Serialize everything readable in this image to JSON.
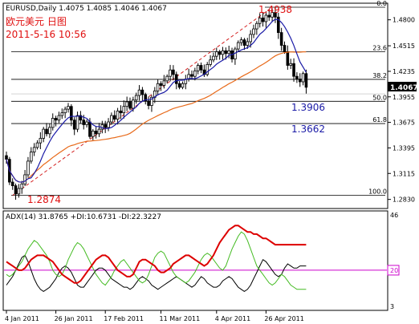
{
  "header": {
    "symbol_line": "EURUSD,Daily  1.4075 1.4085 1.4046 1.4067",
    "title_cn": "欧元美元 日图",
    "datetime": "2011-5-16  10:56"
  },
  "indicator": {
    "label": "ADX(14) 31.8765 +DI:10.6731 -DI:22.3227"
  },
  "colors": {
    "background": "#ffffff",
    "frame": "#000000",
    "candle": "#000000",
    "ma_fast": "#1a1aa6",
    "ma_slow": "#e86a1a",
    "trend": "#d42020",
    "red_text": "#e01010",
    "fib_text": "#1a1aa6",
    "grid": "#000000",
    "adx": "#dd0000",
    "plus_di": "#44bb22",
    "minus_di": "#000000",
    "level_line": "#cc00cc",
    "price_tag_bg": "#000000",
    "price_tag_fg": "#ffffff"
  },
  "chart_data": [
    {
      "type": "candlestick",
      "title": "EURUSD,Daily",
      "ylim": [
        1.2783,
        1.4938
      ],
      "yticks": [
        {
          "value": 1.48,
          "label": "1.4800"
        },
        {
          "value": 1.4515,
          "label": "1.4515"
        },
        {
          "value": 1.4235,
          "label": "1.4235"
        },
        {
          "value": 1.3955,
          "label": "1.3955"
        },
        {
          "value": 1.3675,
          "label": "1.3675"
        },
        {
          "value": 1.3395,
          "label": "1.3395"
        },
        {
          "value": 1.3115,
          "label": "1.3115"
        },
        {
          "value": 1.283,
          "label": "1.2830"
        }
      ],
      "xticks": [
        {
          "index": 0,
          "label": "4 Jan 2011"
        },
        {
          "index": 16,
          "label": "26 Jan 2011"
        },
        {
          "index": 32,
          "label": "17 Feb 2011"
        },
        {
          "index": 50,
          "label": "11 Mar 2011"
        },
        {
          "index": 68,
          "label": "4 Apr 2011"
        },
        {
          "index": 84,
          "label": "26 Apr 2011"
        }
      ],
      "current_price": {
        "value": 1.4067,
        "label": "1.4067"
      },
      "fib_levels": [
        {
          "ratio": "0.0",
          "value": 1.4938
        },
        {
          "ratio": "23.6",
          "value": 1.4449
        },
        {
          "ratio": "38.2",
          "value": 1.4147
        },
        {
          "ratio": "50.0",
          "value": 1.3906
        },
        {
          "ratio": "61.8",
          "value": 1.3662
        },
        {
          "ratio": "100.0",
          "value": 1.2874
        }
      ],
      "annotations": {
        "high": "1.4938",
        "low": "1.2874",
        "fib50": "1.3906",
        "fib618": "1.3662"
      },
      "trend_points": [
        {
          "index": 2,
          "value": 1.2874
        },
        {
          "index": 86,
          "value": 1.4938
        }
      ],
      "closes": [
        1.327,
        1.302,
        1.298,
        1.289,
        1.295,
        1.3,
        1.31,
        1.325,
        1.335,
        1.34,
        1.345,
        1.35,
        1.36,
        1.355,
        1.362,
        1.372,
        1.37,
        1.375,
        1.378,
        1.382,
        1.385,
        1.37,
        1.36,
        1.375,
        1.37,
        1.365,
        1.368,
        1.352,
        1.358,
        1.355,
        1.36,
        1.365,
        1.362,
        1.368,
        1.375,
        1.371,
        1.38,
        1.378,
        1.385,
        1.39,
        1.383,
        1.392,
        1.397,
        1.403,
        1.398,
        1.391,
        1.386,
        1.395,
        1.402,
        1.41,
        1.408,
        1.413,
        1.418,
        1.425,
        1.42,
        1.41,
        1.406,
        1.41,
        1.415,
        1.42,
        1.418,
        1.424,
        1.43,
        1.425,
        1.42,
        1.431,
        1.436,
        1.44,
        1.445,
        1.442,
        1.446,
        1.443,
        1.446,
        1.437,
        1.448,
        1.455,
        1.458,
        1.452,
        1.456,
        1.464,
        1.47,
        1.476,
        1.482,
        1.478,
        1.485,
        1.483,
        1.488,
        1.483,
        1.466,
        1.452,
        1.445,
        1.43,
        1.432,
        1.418,
        1.415,
        1.412,
        1.421,
        1.406
      ]
    },
    {
      "type": "line",
      "title": "ADX(14)",
      "ylim": [
        3,
        46
      ],
      "yticks": [
        {
          "value": 46,
          "label": "46"
        },
        {
          "value": 20,
          "label": "20"
        },
        {
          "value": 3,
          "label": "3"
        }
      ],
      "reference_level": 20,
      "series": [
        {
          "name": "ADX(14)",
          "color": "#dd0000",
          "values": [
            24,
            23,
            22,
            21,
            20,
            20,
            21,
            23,
            25,
            26,
            27,
            27,
            27,
            26,
            25,
            24,
            22,
            20,
            18,
            17,
            16,
            15,
            14,
            14,
            15,
            17,
            19,
            21,
            23,
            25,
            26,
            27,
            27,
            26,
            24,
            22,
            20,
            19,
            18,
            17,
            17,
            18,
            21,
            24,
            25,
            25,
            24,
            23,
            22,
            20,
            19,
            19,
            20,
            21,
            23,
            24,
            25,
            26,
            27,
            27,
            26,
            25,
            24,
            23,
            22,
            23,
            25,
            27,
            30,
            33,
            35,
            37,
            39,
            40,
            41,
            41,
            40,
            39,
            38,
            38,
            37,
            37,
            36,
            35,
            35,
            34,
            33,
            32,
            32,
            32,
            32,
            32,
            32,
            32,
            32,
            32,
            32,
            32
          ]
        },
        {
          "name": "+DI",
          "color": "#44bb22",
          "values": [
            18,
            17,
            18,
            20,
            22,
            24,
            27,
            30,
            32,
            34,
            33,
            31,
            29,
            27,
            24,
            20,
            18,
            17,
            18,
            21,
            25,
            28,
            31,
            33,
            32,
            30,
            27,
            24,
            21,
            18,
            16,
            14,
            13,
            15,
            17,
            20,
            22,
            24,
            25,
            23,
            21,
            19,
            17,
            15,
            14,
            15,
            18,
            22,
            26,
            28,
            29,
            28,
            25,
            22,
            19,
            17,
            16,
            15,
            14,
            15,
            17,
            19,
            22,
            25,
            27,
            28,
            27,
            25,
            23,
            21,
            20,
            22,
            26,
            30,
            33,
            36,
            38,
            37,
            34,
            30,
            26,
            22,
            20,
            18,
            16,
            14,
            13,
            14,
            16,
            18,
            17,
            15,
            13,
            12,
            11,
            11,
            11,
            11
          ]
        },
        {
          "name": "-DI",
          "color": "#000000",
          "values": [
            13,
            15,
            17,
            20,
            23,
            26,
            27,
            24,
            20,
            16,
            13,
            11,
            10,
            11,
            12,
            14,
            16,
            19,
            21,
            22,
            21,
            19,
            16,
            13,
            12,
            12,
            14,
            16,
            18,
            20,
            21,
            21,
            20,
            18,
            16,
            15,
            14,
            13,
            12,
            12,
            11,
            12,
            14,
            16,
            17,
            16,
            15,
            13,
            12,
            11,
            12,
            13,
            14,
            15,
            16,
            17,
            16,
            15,
            14,
            13,
            12,
            13,
            15,
            17,
            16,
            14,
            13,
            12,
            12,
            13,
            15,
            16,
            17,
            16,
            14,
            12,
            11,
            10,
            11,
            13,
            16,
            19,
            22,
            25,
            24,
            22,
            20,
            18,
            17,
            18,
            21,
            23,
            22,
            21,
            21,
            22,
            22,
            22
          ]
        }
      ]
    }
  ]
}
